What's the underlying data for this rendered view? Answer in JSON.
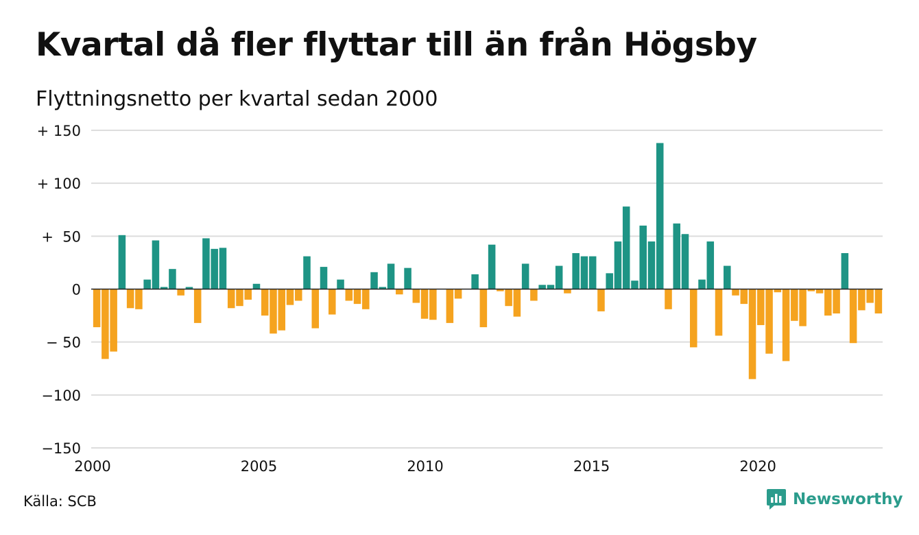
{
  "title": "Kvartal då fler flyttar till än från Högsby",
  "subtitle": "Flyttningsnetto per kvartal sedan 2000",
  "source": "Källa: SCB",
  "brand": {
    "name": "Newsworthy",
    "logo_icon": "bar-chart-speech-bubble-icon"
  },
  "colors": {
    "positive": "#1e9485",
    "negative": "#f5a31f",
    "grid": "#dddddd",
    "zero_line": "#222222",
    "brand": "#2b9c8c"
  },
  "chart_data": {
    "type": "bar",
    "title": "Kvartal då fler flyttar till än från Högsby",
    "subtitle": "Flyttningsnetto per kvartal sedan 2000",
    "xlabel": "",
    "ylabel": "",
    "ylim": [
      -150,
      150
    ],
    "yticks": [
      150,
      100,
      50,
      0,
      -50,
      -100,
      -150
    ],
    "ytick_labels": [
      "+ 150",
      "+ 100",
      "+  50",
      "0",
      "− 50",
      "−100",
      "−150"
    ],
    "xlim": [
      2000,
      2023.75
    ],
    "xticks": [
      2000,
      2005,
      2010,
      2015,
      2020
    ],
    "xtick_labels": [
      "2000",
      "2005",
      "2010",
      "2015",
      "2020"
    ],
    "grid": true,
    "legend": "none",
    "start_quarter": "2000 Q1",
    "values": [
      -36,
      -66,
      -59,
      51,
      -18,
      -19,
      9,
      46,
      2,
      19,
      -6,
      2,
      -32,
      48,
      38,
      39,
      -18,
      -16,
      -10,
      5,
      -25,
      -42,
      -39,
      -15,
      -11,
      31,
      -37,
      21,
      -24,
      9,
      -11,
      -14,
      -19,
      16,
      2,
      24,
      -5,
      20,
      -13,
      -28,
      -29,
      0,
      -32,
      -9,
      0,
      14,
      -36,
      42,
      -2,
      -16,
      -26,
      24,
      -11,
      4,
      4,
      22,
      -4,
      34,
      31,
      31,
      -21,
      15,
      45,
      78,
      8,
      60,
      45,
      138,
      -19,
      62,
      52,
      -55,
      9,
      45,
      -44,
      22,
      -6,
      -14,
      -85,
      -34,
      -61,
      -3,
      -68,
      -30,
      -35,
      -2,
      -4,
      -25,
      -23,
      34,
      -51,
      -20,
      -13,
      -23
    ]
  }
}
